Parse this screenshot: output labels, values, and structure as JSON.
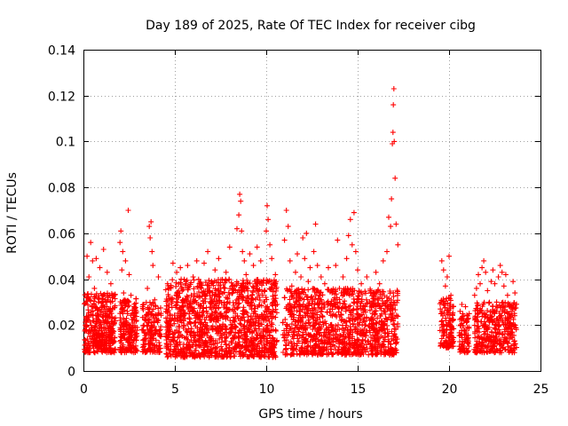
{
  "chart_data": {
    "type": "scatter",
    "title": "Day 189 of 2025, Rate Of TEC Index for receiver cibg",
    "xlabel": "GPS time / hours",
    "ylabel": "ROTI / TECUs",
    "xlim": [
      0,
      25
    ],
    "ylim": [
      0,
      0.14
    ],
    "xticks": [
      0,
      5,
      10,
      15,
      20,
      25
    ],
    "xtick_labels": [
      "0",
      "5",
      "10",
      "15",
      "20",
      "25"
    ],
    "yticks": [
      0,
      0.02,
      0.04,
      0.06,
      0.08,
      0.1,
      0.12,
      0.14
    ],
    "ytick_labels": [
      "0",
      "0.02",
      "0.04",
      "0.06",
      "0.08",
      "0.1",
      "0.12",
      "0.14"
    ],
    "grid": true,
    "marker": "+",
    "color": "#ff0000",
    "series": [
      {
        "name": "ROTI",
        "points": [
          [
            0.1,
            0.018
          ],
          [
            0.15,
            0.032
          ],
          [
            0.2,
            0.05
          ],
          [
            0.25,
            0.022
          ],
          [
            0.3,
            0.041
          ],
          [
            0.35,
            0.015
          ],
          [
            0.4,
            0.056
          ],
          [
            0.45,
            0.028
          ],
          [
            0.5,
            0.048
          ],
          [
            0.55,
            0.012
          ],
          [
            0.6,
            0.036
          ],
          [
            0.7,
            0.049
          ],
          [
            0.8,
            0.024
          ],
          [
            0.9,
            0.045
          ],
          [
            1.0,
            0.019
          ],
          [
            1.1,
            0.053
          ],
          [
            1.2,
            0.031
          ],
          [
            1.3,
            0.043
          ],
          [
            1.4,
            0.016
          ],
          [
            1.5,
            0.038
          ],
          [
            1.6,
            0.027
          ],
          [
            1.7,
            0.021
          ],
          [
            2.0,
            0.056
          ],
          [
            2.05,
            0.061
          ],
          [
            2.1,
            0.044
          ],
          [
            2.15,
            0.052
          ],
          [
            2.2,
            0.034
          ],
          [
            2.3,
            0.048
          ],
          [
            2.4,
            0.026
          ],
          [
            2.45,
            0.07
          ],
          [
            2.5,
            0.042
          ],
          [
            2.6,
            0.033
          ],
          [
            2.7,
            0.019
          ],
          [
            2.8,
            0.025
          ],
          [
            2.9,
            0.022
          ],
          [
            3.2,
            0.018
          ],
          [
            3.3,
            0.029
          ],
          [
            3.4,
            0.024
          ],
          [
            3.5,
            0.036
          ],
          [
            3.6,
            0.063
          ],
          [
            3.65,
            0.058
          ],
          [
            3.7,
            0.065
          ],
          [
            3.75,
            0.052
          ],
          [
            3.8,
            0.046
          ],
          [
            3.9,
            0.031
          ],
          [
            4.0,
            0.022
          ],
          [
            4.1,
            0.041
          ],
          [
            4.2,
            0.016
          ],
          [
            4.6,
            0.038
          ],
          [
            4.7,
            0.022
          ],
          [
            4.8,
            0.031
          ],
          [
            4.9,
            0.047
          ],
          [
            5.0,
            0.017
          ],
          [
            5.1,
            0.043
          ],
          [
            5.2,
            0.032
          ],
          [
            5.3,
            0.045
          ],
          [
            5.4,
            0.028
          ],
          [
            5.5,
            0.006
          ],
          [
            5.6,
            0.038
          ],
          [
            5.7,
            0.046
          ],
          [
            5.8,
            0.009
          ],
          [
            5.9,
            0.033
          ],
          [
            6.0,
            0.041
          ],
          [
            6.1,
            0.021
          ],
          [
            6.2,
            0.048
          ],
          [
            6.3,
            0.029
          ],
          [
            6.5,
            0.034
          ],
          [
            6.6,
            0.047
          ],
          [
            6.8,
            0.052
          ],
          [
            6.9,
            0.035
          ],
          [
            7.0,
            0.027
          ],
          [
            7.2,
            0.044
          ],
          [
            7.4,
            0.049
          ],
          [
            7.5,
            0.036
          ],
          [
            7.6,
            0.018
          ],
          [
            7.8,
            0.043
          ],
          [
            8.0,
            0.054
          ],
          [
            8.2,
            0.037
          ],
          [
            8.4,
            0.062
          ],
          [
            8.5,
            0.068
          ],
          [
            8.55,
            0.077
          ],
          [
            8.6,
            0.074
          ],
          [
            8.65,
            0.061
          ],
          [
            8.7,
            0.052
          ],
          [
            8.8,
            0.048
          ],
          [
            8.9,
            0.042
          ],
          [
            9.0,
            0.038
          ],
          [
            9.1,
            0.051
          ],
          [
            9.2,
            0.031
          ],
          [
            9.3,
            0.046
          ],
          [
            9.5,
            0.054
          ],
          [
            9.6,
            0.039
          ],
          [
            9.7,
            0.048
          ],
          [
            9.8,
            0.033
          ],
          [
            10.0,
            0.061
          ],
          [
            10.05,
            0.072
          ],
          [
            10.1,
            0.066
          ],
          [
            10.2,
            0.055
          ],
          [
            10.3,
            0.049
          ],
          [
            10.4,
            0.038
          ],
          [
            10.5,
            0.042
          ],
          [
            10.6,
            0.029
          ],
          [
            11.0,
            0.057
          ],
          [
            11.1,
            0.07
          ],
          [
            11.2,
            0.063
          ],
          [
            11.3,
            0.048
          ],
          [
            11.4,
            0.037
          ],
          [
            11.5,
            0.028
          ],
          [
            11.6,
            0.043
          ],
          [
            11.7,
            0.051
          ],
          [
            11.8,
            0.032
          ],
          [
            11.9,
            0.041
          ],
          [
            12.0,
            0.058
          ],
          [
            12.1,
            0.049
          ],
          [
            12.2,
            0.06
          ],
          [
            12.3,
            0.039
          ],
          [
            12.4,
            0.045
          ],
          [
            12.5,
            0.029
          ],
          [
            12.6,
            0.052
          ],
          [
            12.7,
            0.064
          ],
          [
            12.8,
            0.046
          ],
          [
            12.9,
            0.033
          ],
          [
            13.0,
            0.041
          ],
          [
            13.2,
            0.038
          ],
          [
            13.4,
            0.045
          ],
          [
            13.5,
            0.027
          ],
          [
            13.6,
            0.034
          ],
          [
            13.7,
            0.031
          ],
          [
            13.8,
            0.046
          ],
          [
            13.9,
            0.057
          ],
          [
            14.0,
            0.036
          ],
          [
            14.2,
            0.041
          ],
          [
            14.4,
            0.049
          ],
          [
            14.5,
            0.059
          ],
          [
            14.6,
            0.066
          ],
          [
            14.7,
            0.055
          ],
          [
            14.8,
            0.069
          ],
          [
            14.9,
            0.052
          ],
          [
            15.0,
            0.044
          ],
          [
            15.2,
            0.038
          ],
          [
            15.5,
            0.041
          ],
          [
            15.7,
            0.035
          ],
          [
            15.9,
            0.029
          ],
          [
            16.0,
            0.043
          ],
          [
            16.2,
            0.038
          ],
          [
            16.4,
            0.048
          ],
          [
            16.6,
            0.052
          ],
          [
            16.7,
            0.067
          ],
          [
            16.8,
            0.063
          ],
          [
            16.85,
            0.075
          ],
          [
            16.9,
            0.099
          ],
          [
            16.93,
            0.104
          ],
          [
            16.95,
            0.116
          ],
          [
            16.98,
            0.123
          ],
          [
            17.0,
            0.1
          ],
          [
            17.05,
            0.084
          ],
          [
            17.1,
            0.064
          ],
          [
            17.2,
            0.055
          ],
          [
            19.6,
            0.048
          ],
          [
            19.7,
            0.044
          ],
          [
            19.8,
            0.037
          ],
          [
            19.9,
            0.041
          ],
          [
            20.0,
            0.05
          ],
          [
            20.1,
            0.033
          ],
          [
            20.2,
            0.028
          ],
          [
            20.6,
            0.026
          ],
          [
            20.7,
            0.029
          ],
          [
            20.8,
            0.022
          ],
          [
            20.9,
            0.028
          ],
          [
            21.0,
            0.019
          ],
          [
            21.1,
            0.025
          ],
          [
            21.4,
            0.033
          ],
          [
            21.5,
            0.036
          ],
          [
            21.6,
            0.042
          ],
          [
            21.7,
            0.038
          ],
          [
            21.8,
            0.045
          ],
          [
            21.9,
            0.048
          ],
          [
            22.0,
            0.043
          ],
          [
            22.1,
            0.035
          ],
          [
            22.2,
            0.022
          ],
          [
            22.3,
            0.039
          ],
          [
            22.4,
            0.044
          ],
          [
            22.5,
            0.038
          ],
          [
            22.6,
            0.03
          ],
          [
            22.7,
            0.041
          ],
          [
            22.8,
            0.046
          ],
          [
            22.9,
            0.043
          ],
          [
            23.0,
            0.037
          ],
          [
            23.1,
            0.042
          ],
          [
            23.2,
            0.033
          ],
          [
            23.3,
            0.028
          ],
          [
            23.4,
            0.026
          ],
          [
            23.5,
            0.039
          ],
          [
            23.6,
            0.034
          ]
        ],
        "segments": [
          {
            "x0": 0.05,
            "x1": 1.75,
            "lo": 0.008,
            "hi": 0.034,
            "n": 380
          },
          {
            "x0": 2.0,
            "x1": 2.95,
            "lo": 0.008,
            "hi": 0.032,
            "n": 190
          },
          {
            "x0": 3.2,
            "x1": 4.25,
            "lo": 0.008,
            "hi": 0.03,
            "n": 160
          },
          {
            "x0": 4.5,
            "x1": 10.6,
            "lo": 0.006,
            "hi": 0.04,
            "n": 1250
          },
          {
            "x0": 10.9,
            "x1": 17.2,
            "lo": 0.007,
            "hi": 0.036,
            "n": 1100
          },
          {
            "x0": 19.5,
            "x1": 20.25,
            "lo": 0.01,
            "hi": 0.032,
            "n": 130
          },
          {
            "x0": 20.55,
            "x1": 21.1,
            "lo": 0.008,
            "hi": 0.025,
            "n": 80
          },
          {
            "x0": 21.35,
            "x1": 23.7,
            "lo": 0.008,
            "hi": 0.03,
            "n": 360
          }
        ]
      }
    ]
  }
}
